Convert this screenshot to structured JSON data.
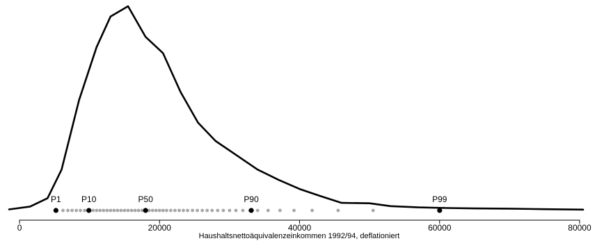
{
  "chart_data": {
    "type": "line",
    "title": "",
    "xlabel": "Haushaltsnettoäquivalenzeinkommen 1992/94, deflationiert",
    "ylabel": "",
    "xlim": [
      -1500,
      80500
    ],
    "ylim": [
      0,
      1
    ],
    "x_ticks": [
      0,
      20000,
      40000,
      60000,
      80000
    ],
    "x_tick_labels": [
      "0",
      "20000",
      "40000",
      "60000",
      "80000"
    ],
    "grid": false,
    "colors": {
      "curve": "#000000",
      "quantile_dot": "#a6a6a6",
      "percentile_marker": "#000000"
    },
    "density_curve": {
      "x": [
        -1500,
        1500,
        4000,
        6000,
        8500,
        11000,
        13000,
        15500,
        18000,
        20500,
        23000,
        25500,
        28000,
        31000,
        34000,
        37000,
        40000,
        43000,
        46000,
        50000,
        53000,
        57000,
        61000,
        65000,
        70000,
        75000,
        80500
      ],
      "y": [
        0.005,
        0.019,
        0.06,
        0.2,
        0.54,
        0.8,
        0.95,
        1.0,
        0.85,
        0.77,
        0.58,
        0.43,
        0.34,
        0.27,
        0.2,
        0.15,
        0.105,
        0.07,
        0.037,
        0.035,
        0.021,
        0.015,
        0.012,
        0.01,
        0.009,
        0.006,
        0.004
      ]
    },
    "quantile_dots": {
      "x": [
        6200,
        6900,
        7500,
        8100,
        8700,
        9300,
        9900,
        10500,
        11000,
        11500,
        12000,
        12500,
        13000,
        13500,
        14000,
        14500,
        15000,
        15500,
        16000,
        16500,
        17000,
        17500,
        18000,
        18500,
        19000,
        19500,
        20000,
        20500,
        21000,
        21600,
        22200,
        22800,
        23400,
        24000,
        24700,
        25400,
        26100,
        26800,
        27500,
        28300,
        29100,
        30000,
        30900,
        31900,
        32900,
        34000,
        35500,
        37200,
        39200,
        41800,
        45500,
        50500
      ]
    },
    "percentiles": [
      {
        "label": "P1",
        "x": 5200
      },
      {
        "label": "P10",
        "x": 9900
      },
      {
        "label": "P50",
        "x": 18000
      },
      {
        "label": "P90",
        "x": 33100
      },
      {
        "label": "P99",
        "x": 60000
      }
    ]
  }
}
